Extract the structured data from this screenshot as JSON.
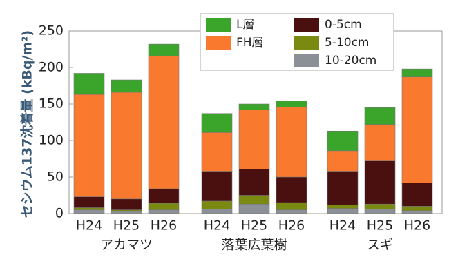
{
  "chart_data": {
    "type": "stacked_bar",
    "ylabel": "セシウム137沈着量 (kBq/m²)",
    "groups": [
      {
        "name": "アカマツ",
        "categories": [
          "H24",
          "H25",
          "H26"
        ]
      },
      {
        "name": "落葉広葉樹",
        "categories": [
          "H24",
          "H25",
          "H26"
        ]
      },
      {
        "name": "スギ",
        "categories": [
          "H24",
          "H25",
          "H26"
        ]
      }
    ],
    "series": [
      {
        "name": "L層",
        "color": "#3aa52a",
        "values": [
          29,
          17,
          16,
          26,
          8,
          8,
          27,
          23,
          11
        ]
      },
      {
        "name": "FH層",
        "color": "#f97a2e",
        "values": [
          140,
          146,
          182,
          53,
          81,
          96,
          28,
          50,
          145
        ]
      },
      {
        "name": "0-5cm",
        "color": "#4a1010",
        "values": [
          15,
          15,
          20,
          41,
          36,
          35,
          46,
          59,
          32
        ]
      },
      {
        "name": "5-10cm",
        "color": "#7a8a10",
        "values": [
          3,
          2,
          9,
          11,
          12,
          10,
          5,
          7,
          6
        ]
      },
      {
        "name": "10-20cm",
        "color": "#8a9096",
        "values": [
          5,
          3,
          5,
          6,
          13,
          5,
          7,
          6,
          4
        ]
      }
    ],
    "ylim": [
      0,
      250
    ],
    "yticks": [
      0,
      50,
      100,
      150,
      200,
      250
    ]
  }
}
